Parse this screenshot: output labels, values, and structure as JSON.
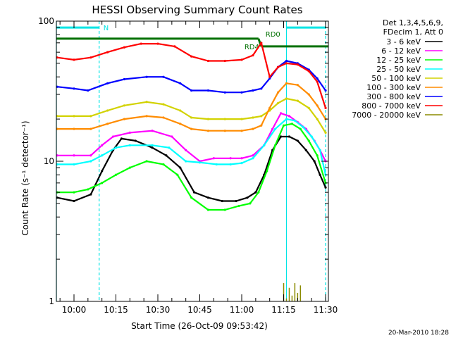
{
  "chart_data": {
    "type": "line",
    "title": "HESSI Observing Summary Count Rates",
    "xlabel": "Start Time (26-Oct-09 09:53:42)",
    "ylabel": "Count Rate (s⁻¹ detector⁻¹)",
    "x_scale": "time",
    "y_scale": "log",
    "xlim": [
      "09:53:42",
      "11:31:00"
    ],
    "ylim": [
      1,
      100
    ],
    "x_ticks": [
      "10:00",
      "10:15",
      "10:30",
      "10:45",
      "11:00",
      "11:15",
      "11:30"
    ],
    "y_ticks": [
      "1",
      "10",
      "100"
    ],
    "legend_header": [
      "Det 1,3,4,5,6,9,",
      "FDecim 1, Att 0"
    ],
    "legend_position": "right",
    "series": [
      {
        "name": "3 - 6 keV",
        "color": "#000000",
        "points": [
          [
            "09:54",
            5.5
          ],
          [
            "10:00",
            5.2
          ],
          [
            "10:06",
            5.8
          ],
          [
            "10:10",
            8.5
          ],
          [
            "10:14",
            12
          ],
          [
            "10:17",
            14.5
          ],
          [
            "10:22",
            14
          ],
          [
            "10:28",
            12.5
          ],
          [
            "10:33",
            11
          ],
          [
            "10:38",
            9
          ],
          [
            "10:43",
            6
          ],
          [
            "10:48",
            5.5
          ],
          [
            "10:53",
            5.2
          ],
          [
            "10:58",
            5.2
          ],
          [
            "11:02",
            5.5
          ],
          [
            "11:05",
            6
          ],
          [
            "11:08",
            8
          ],
          [
            "11:11",
            12
          ],
          [
            "11:14",
            15
          ],
          [
            "11:17",
            15
          ],
          [
            "11:20",
            14
          ],
          [
            "11:23",
            12
          ],
          [
            "11:26",
            10
          ],
          [
            "11:28",
            8
          ],
          [
            "11:30",
            6.5
          ]
        ]
      },
      {
        "name": "6 - 12 keV",
        "color": "#ff00ff",
        "points": [
          [
            "09:54",
            11
          ],
          [
            "10:00",
            11
          ],
          [
            "10:06",
            11
          ],
          [
            "10:10",
            13
          ],
          [
            "10:14",
            15
          ],
          [
            "10:20",
            16
          ],
          [
            "10:28",
            16.5
          ],
          [
            "10:35",
            15
          ],
          [
            "10:40",
            12
          ],
          [
            "10:45",
            10
          ],
          [
            "10:50",
            10.5
          ],
          [
            "10:56",
            10.5
          ],
          [
            "11:00",
            10.5
          ],
          [
            "11:04",
            11
          ],
          [
            "11:08",
            13
          ],
          [
            "11:11",
            17
          ],
          [
            "11:14",
            22
          ],
          [
            "11:17",
            21
          ],
          [
            "11:20",
            19
          ],
          [
            "11:23",
            17
          ],
          [
            "11:26",
            14
          ],
          [
            "11:28",
            12
          ],
          [
            "11:30",
            10
          ]
        ]
      },
      {
        "name": "12 - 25 keV",
        "color": "#00ff00",
        "points": [
          [
            "09:54",
            6
          ],
          [
            "10:00",
            6
          ],
          [
            "10:05",
            6.3
          ],
          [
            "10:10",
            7
          ],
          [
            "10:15",
            8
          ],
          [
            "10:20",
            9
          ],
          [
            "10:26",
            10
          ],
          [
            "10:32",
            9.5
          ],
          [
            "10:37",
            8
          ],
          [
            "10:42",
            5.5
          ],
          [
            "10:48",
            4.5
          ],
          [
            "10:54",
            4.5
          ],
          [
            "10:59",
            4.8
          ],
          [
            "11:03",
            5
          ],
          [
            "11:06",
            6
          ],
          [
            "11:09",
            8.5
          ],
          [
            "11:12",
            13
          ],
          [
            "11:15",
            18
          ],
          [
            "11:18",
            18.5
          ],
          [
            "11:21",
            17
          ],
          [
            "11:24",
            14
          ],
          [
            "11:27",
            11
          ],
          [
            "11:30",
            7
          ]
        ]
      },
      {
        "name": "25 - 50 keV",
        "color": "#00ffff",
        "points": [
          [
            "09:54",
            9.5
          ],
          [
            "10:00",
            9.5
          ],
          [
            "10:06",
            10
          ],
          [
            "10:10",
            11
          ],
          [
            "10:15",
            12.5
          ],
          [
            "10:20",
            13
          ],
          [
            "10:28",
            13
          ],
          [
            "10:34",
            12.5
          ],
          [
            "10:40",
            10
          ],
          [
            "10:45",
            9.8
          ],
          [
            "10:51",
            9.5
          ],
          [
            "10:56",
            9.5
          ],
          [
            "11:00",
            9.7
          ],
          [
            "11:04",
            10.5
          ],
          [
            "11:08",
            13
          ],
          [
            "11:12",
            17
          ],
          [
            "11:16",
            20
          ],
          [
            "11:19",
            19.5
          ],
          [
            "11:22",
            17.5
          ],
          [
            "11:25",
            15
          ],
          [
            "11:28",
            12
          ],
          [
            "11:30",
            8
          ]
        ]
      },
      {
        "name": "50 - 100 keV",
        "color": "#d2d200",
        "points": [
          [
            "09:54",
            21
          ],
          [
            "10:00",
            21
          ],
          [
            "10:06",
            21
          ],
          [
            "10:12",
            23
          ],
          [
            "10:18",
            25
          ],
          [
            "10:26",
            26.5
          ],
          [
            "10:32",
            25.5
          ],
          [
            "10:38",
            23
          ],
          [
            "10:42",
            20.5
          ],
          [
            "10:48",
            20
          ],
          [
            "10:54",
            20
          ],
          [
            "11:00",
            20
          ],
          [
            "11:04",
            20.5
          ],
          [
            "11:07",
            21
          ],
          [
            "11:10",
            23
          ],
          [
            "11:13",
            26
          ],
          [
            "11:16",
            28
          ],
          [
            "11:20",
            27
          ],
          [
            "11:24",
            24
          ],
          [
            "11:27",
            20
          ],
          [
            "11:30",
            16
          ]
        ]
      },
      {
        "name": "100 - 300 keV",
        "color": "#ff8c00",
        "points": [
          [
            "09:54",
            17
          ],
          [
            "10:00",
            17
          ],
          [
            "10:06",
            17
          ],
          [
            "10:12",
            18.5
          ],
          [
            "10:18",
            20
          ],
          [
            "10:26",
            21
          ],
          [
            "10:32",
            20.5
          ],
          [
            "10:38",
            18.5
          ],
          [
            "10:42",
            17
          ],
          [
            "10:48",
            16.5
          ],
          [
            "10:54",
            16.5
          ],
          [
            "11:00",
            16.5
          ],
          [
            "11:04",
            17
          ],
          [
            "11:07",
            18
          ],
          [
            "11:10",
            24
          ],
          [
            "11:13",
            31
          ],
          [
            "11:16",
            36
          ],
          [
            "11:20",
            35
          ],
          [
            "11:24",
            30
          ],
          [
            "11:27",
            25
          ],
          [
            "11:30",
            20
          ]
        ]
      },
      {
        "name": "300 - 800 keV",
        "color": "#0000ff",
        "points": [
          [
            "09:54",
            34
          ],
          [
            "10:00",
            33
          ],
          [
            "10:05",
            32
          ],
          [
            "10:12",
            36
          ],
          [
            "10:18",
            38.5
          ],
          [
            "10:26",
            40
          ],
          [
            "10:32",
            40
          ],
          [
            "10:38",
            36
          ],
          [
            "10:42",
            32
          ],
          [
            "10:48",
            32
          ],
          [
            "10:54",
            31
          ],
          [
            "11:00",
            31
          ],
          [
            "11:04",
            32
          ],
          [
            "11:07",
            33
          ],
          [
            "11:10",
            39
          ],
          [
            "11:13",
            47
          ],
          [
            "11:16",
            52
          ],
          [
            "11:20",
            50
          ],
          [
            "11:24",
            45
          ],
          [
            "11:27",
            39
          ],
          [
            "11:30",
            32
          ]
        ]
      },
      {
        "name": "800 - 7000 keV",
        "color": "#ff0000",
        "points": [
          [
            "09:54",
            55
          ],
          [
            "10:00",
            53
          ],
          [
            "10:06",
            55
          ],
          [
            "10:12",
            60
          ],
          [
            "10:18",
            65
          ],
          [
            "10:24",
            69
          ],
          [
            "10:30",
            69
          ],
          [
            "10:36",
            66
          ],
          [
            "10:42",
            56
          ],
          [
            "10:48",
            52
          ],
          [
            "10:54",
            52
          ],
          [
            "11:00",
            53
          ],
          [
            "11:04",
            57
          ],
          [
            "11:07",
            70
          ],
          [
            "11:10",
            40
          ],
          [
            "11:13",
            47
          ],
          [
            "11:16",
            50
          ],
          [
            "11:20",
            49
          ],
          [
            "11:24",
            44
          ],
          [
            "11:27",
            37
          ],
          [
            "11:30",
            24
          ]
        ]
      },
      {
        "name": "7000 - 20000 keV",
        "color": "#8b8b00",
        "points": [
          [
            "11:13",
            1
          ],
          [
            "11:15",
            1.35
          ],
          [
            "11:16",
            1.05
          ],
          [
            "11:17",
            1.25
          ],
          [
            "11:18",
            1.1
          ],
          [
            "11:19",
            1.35
          ],
          [
            "11:20",
            1.15
          ],
          [
            "11:21",
            1.3
          ],
          [
            "11:22",
            1
          ]
        ]
      }
    ],
    "annotations": {
      "rd4": {
        "label": "RD4",
        "time": "11:06",
        "level": 75
      },
      "rd0": {
        "label": "RD0",
        "time": "11:07",
        "level": 75
      },
      "night": {
        "label": "N",
        "start": "09:53:42",
        "end": "10:09",
        "level": 90
      },
      "day": {
        "start": "11:16",
        "end": "11:30",
        "level": 90
      },
      "solid_markers": [
        "09:53:42",
        "11:16"
      ],
      "dashed_markers": [
        "10:09",
        "11:30"
      ]
    },
    "stamp": "20-Mar-2010 18:28"
  }
}
